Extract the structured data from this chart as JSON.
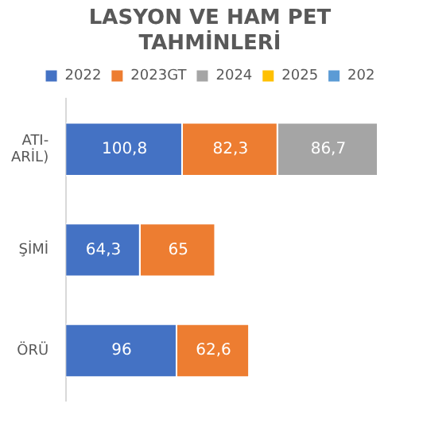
{
  "chart_data": {
    "type": "bar",
    "orientation": "horizontal",
    "stacked": true,
    "title": "LASYON VE HAM PET\nTAHMİNLERİ",
    "categories": [
      "ATI-\nARİL)",
      "ŞİMİ",
      "ÖRÜ"
    ],
    "series": [
      {
        "name": "2022",
        "color": "#4472c4",
        "values": [
          100.8,
          64.3,
          96
        ],
        "value_labels": [
          "100,8",
          "64,3",
          "96"
        ]
      },
      {
        "name": "2023GT",
        "color": "#ed7d31",
        "values": [
          82.3,
          65,
          62.6
        ],
        "value_labels": [
          "82,3",
          "65",
          "62,6"
        ]
      },
      {
        "name": "2024",
        "color": "#a5a5a5",
        "values": [
          86.7,
          null,
          null
        ],
        "value_labels": [
          "86,7",
          null,
          null
        ]
      },
      {
        "name": "2025",
        "color": "#ffc000",
        "values": [
          null,
          null,
          null
        ]
      },
      {
        "name": "202",
        "color": "#5b9bd5",
        "values": [
          null,
          null,
          null
        ]
      }
    ],
    "legend": "top",
    "grid": false
  }
}
